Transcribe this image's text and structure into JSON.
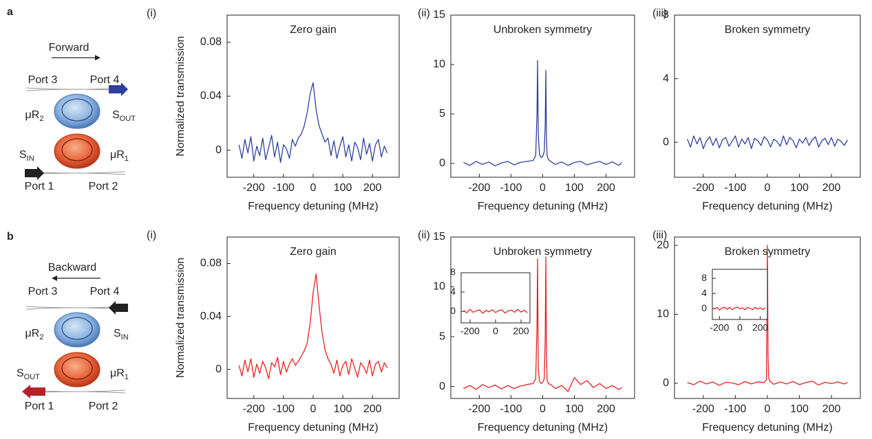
{
  "panel_labels": [
    "a",
    "b"
  ],
  "schematics": [
    {
      "direction": "Forward",
      "port3": "Port 3",
      "port4": "Port 4",
      "port1": "Port 1",
      "port2": "Port 2",
      "mr2": {
        "base": "μR",
        "sub": "2"
      },
      "mr1": {
        "base": "μR",
        "sub": "1"
      },
      "s_out": {
        "base": "S",
        "sub": "OUT"
      },
      "s_in": {
        "base": "S",
        "sub": "IN"
      }
    },
    {
      "direction": "Backward",
      "port3": "Port 3",
      "port4": "Port 4",
      "port1": "Port 1",
      "port2": "Port 2",
      "mr2": {
        "base": "μR",
        "sub": "2"
      },
      "mr1": {
        "base": "μR",
        "sub": "1"
      },
      "s_out": {
        "base": "S",
        "sub": "OUT"
      },
      "s_in": {
        "base": "S",
        "sub": "IN"
      }
    }
  ],
  "chart_data": [
    {
      "type": "line",
      "label": "(i)",
      "title": "Zero gain",
      "xlabel": "Frequency detuning (MHz)",
      "ylabel": "Normalized transmission",
      "color": "#2f3f9f",
      "xlim": [
        -290,
        290
      ],
      "xticks": [
        -200,
        -100,
        0,
        100,
        200
      ],
      "ylim": [
        -0.02,
        0.1
      ],
      "yticks": [
        0,
        0.04,
        0.08
      ],
      "x": [
        -250,
        -240,
        -230,
        -220,
        -210,
        -200,
        -190,
        -180,
        -170,
        -160,
        -150,
        -140,
        -130,
        -120,
        -110,
        -100,
        -90,
        -80,
        -70,
        -60,
        -50,
        -40,
        -30,
        -20,
        -10,
        0,
        10,
        20,
        30,
        40,
        50,
        60,
        70,
        80,
        90,
        100,
        110,
        120,
        130,
        140,
        150,
        160,
        170,
        180,
        190,
        200,
        210,
        220,
        230,
        240,
        250
      ],
      "values": [
        0.004,
        -0.006,
        0.008,
        -0.002,
        0.01,
        -0.008,
        0.003,
        -0.004,
        0.009,
        -0.007,
        0.002,
        0.011,
        -0.005,
        0.006,
        -0.009,
        0.004,
        0.001,
        -0.006,
        0.008,
        0.003,
        0.009,
        0.012,
        0.018,
        0.028,
        0.042,
        0.05,
        0.03,
        0.018,
        0.012,
        0.006,
        0.009,
        -0.004,
        0.007,
        -0.006,
        0.003,
        0.01,
        -0.005,
        0.004,
        -0.008,
        0.006,
        0.002,
        -0.007,
        0.009,
        -0.003,
        0.005,
        -0.008,
        0.004,
        0.008,
        -0.005,
        0.003,
        -0.002
      ]
    },
    {
      "type": "line",
      "label": "(ii)",
      "title": "Unbroken symmetry",
      "xlabel": "Frequency detuning (MHz)",
      "color": "#2f3f9f",
      "xlim": [
        -290,
        290
      ],
      "xticks": [
        -200,
        -100,
        0,
        100,
        200
      ],
      "ylim": [
        -1.4,
        15
      ],
      "yticks": [
        0,
        5,
        10,
        15
      ],
      "x": [
        -250,
        -230,
        -210,
        -190,
        -170,
        -150,
        -130,
        -110,
        -90,
        -70,
        -50,
        -30,
        -22,
        -18,
        -16,
        -14,
        -10,
        -5,
        0,
        5,
        8,
        10,
        12,
        14,
        18,
        25,
        40,
        60,
        80,
        100,
        120,
        140,
        160,
        180,
        200,
        220,
        240,
        250
      ],
      "values": [
        0.1,
        -0.2,
        0.2,
        -0.1,
        0.15,
        -0.25,
        0.05,
        0.2,
        -0.15,
        0.1,
        0.2,
        0.3,
        0.8,
        5,
        10.4,
        3,
        0.9,
        0.6,
        0.7,
        1.2,
        4,
        9.4,
        2.5,
        0.8,
        0.4,
        0.2,
        -0.1,
        0.15,
        -0.2,
        0.1,
        0.2,
        -0.15,
        0.05,
        0.2,
        -0.1,
        0.15,
        -0.2,
        0.1
      ]
    },
    {
      "type": "line",
      "label": "(iii)",
      "title": "Broken symmetry",
      "xlabel": "Frequency detuning (MHz)",
      "color": "#2f3f9f",
      "xlim": [
        -290,
        290
      ],
      "xticks": [
        -200,
        -100,
        0,
        100,
        200
      ],
      "ylim": [
        -2.2,
        8
      ],
      "yticks": [
        0,
        4,
        8
      ],
      "x": [
        -250,
        -240,
        -230,
        -220,
        -210,
        -200,
        -190,
        -180,
        -170,
        -160,
        -150,
        -140,
        -130,
        -120,
        -110,
        -100,
        -90,
        -80,
        -70,
        -60,
        -50,
        -40,
        -30,
        -20,
        -10,
        0,
        10,
        20,
        30,
        40,
        50,
        60,
        70,
        80,
        90,
        100,
        110,
        120,
        130,
        140,
        150,
        160,
        170,
        180,
        190,
        200,
        210,
        220,
        230,
        240,
        250
      ],
      "values": [
        0.2,
        -0.3,
        0.4,
        -0.1,
        0.3,
        -0.4,
        0.1,
        0.35,
        -0.2,
        0.25,
        -0.35,
        0.15,
        0.3,
        -0.25,
        0.05,
        0.4,
        -0.3,
        0.2,
        -0.1,
        0.3,
        -0.4,
        0.25,
        0.1,
        -0.2,
        0.35,
        0.15,
        -0.3,
        0.2,
        0.05,
        -0.25,
        0.4,
        -0.15,
        0.3,
        0.1,
        -0.35,
        0.2,
        -0.05,
        0.3,
        -0.2,
        0.15,
        0.35,
        -0.3,
        0.1,
        0.25,
        -0.15,
        0.3,
        -0.25,
        0.2,
        0.05,
        -0.2,
        0.15
      ]
    },
    {
      "type": "line",
      "label": "(i)",
      "title": "Zero gain",
      "xlabel": "Frequency detuning (MHz)",
      "ylabel": "Normalized transmission",
      "color": "#e8201f",
      "xlim": [
        -290,
        290
      ],
      "xticks": [
        -200,
        -100,
        0,
        100,
        200
      ],
      "ylim": [
        -0.022,
        0.1
      ],
      "yticks": [
        0,
        0.04,
        0.08
      ],
      "x": [
        -250,
        -240,
        -230,
        -220,
        -210,
        -200,
        -190,
        -180,
        -170,
        -160,
        -150,
        -140,
        -130,
        -120,
        -110,
        -100,
        -90,
        -80,
        -70,
        -60,
        -50,
        -40,
        -30,
        -20,
        -10,
        0,
        10,
        20,
        30,
        40,
        50,
        60,
        70,
        80,
        90,
        100,
        110,
        120,
        130,
        140,
        150,
        160,
        170,
        180,
        190,
        200,
        210,
        220,
        230,
        240,
        250
      ],
      "values": [
        0.003,
        -0.005,
        0.007,
        -0.002,
        0.008,
        -0.006,
        0.004,
        -0.003,
        0.006,
        0.001,
        -0.007,
        0.005,
        0.002,
        0.009,
        -0.004,
        0.006,
        -0.002,
        0.004,
        0.008,
        0.003,
        0.006,
        0.01,
        0.014,
        0.02,
        0.035,
        0.058,
        0.072,
        0.048,
        0.028,
        0.015,
        0.008,
        0.004,
        -0.003,
        0.007,
        -0.005,
        0.003,
        0.006,
        -0.004,
        0.008,
        0.001,
        -0.006,
        0.005,
        0.002,
        -0.003,
        0.007,
        -0.005,
        0.004,
        0.006,
        -0.002,
        0.005,
        0.001
      ]
    },
    {
      "type": "line",
      "label": "(ii)",
      "title": "Unbroken symmetry",
      "xlabel": "Frequency detuning (MHz)",
      "color": "#e8201f",
      "xlim": [
        -290,
        290
      ],
      "xticks": [
        -200,
        -100,
        0,
        100,
        200
      ],
      "ylim": [
        -1.2,
        15
      ],
      "yticks": [
        0,
        5,
        10,
        15
      ],
      "x": [
        -250,
        -230,
        -210,
        -190,
        -170,
        -150,
        -130,
        -110,
        -90,
        -70,
        -50,
        -30,
        -22,
        -18,
        -16,
        -14,
        -10,
        -5,
        0,
        5,
        8,
        10,
        12,
        14,
        18,
        25,
        40,
        60,
        80,
        100,
        120,
        140,
        160,
        180,
        200,
        220,
        240,
        250
      ],
      "values": [
        -0.2,
        0.1,
        -0.3,
        0.2,
        -0.1,
        0.15,
        -0.25,
        0.1,
        -0.2,
        0.05,
        0.2,
        0.3,
        0.8,
        6,
        12.8,
        2,
        0.5,
        0.3,
        0.4,
        0.8,
        5,
        13,
        3,
        0.6,
        0.3,
        0.2,
        -0.2,
        0.1,
        -0.5,
        0.9,
        0.2,
        0.6,
        -0.1,
        0.3,
        -0.2,
        0.1,
        -0.3,
        -0.1
      ],
      "inset": {
        "type": "line",
        "color": "#e8201f",
        "xlim": [
          -270,
          270
        ],
        "xticks": [
          -200,
          0,
          200
        ],
        "ylim": [
          -2.4,
          8
        ],
        "yticks": [
          0,
          4,
          8
        ],
        "x": [
          -250,
          -225,
          -200,
          -175,
          -150,
          -125,
          -100,
          -75,
          -50,
          -25,
          0,
          25,
          50,
          75,
          100,
          125,
          150,
          175,
          200,
          225,
          250
        ],
        "values": [
          0.2,
          -0.3,
          0.4,
          -0.2,
          0.1,
          0.3,
          -0.4,
          0.2,
          -0.1,
          0.35,
          -0.25,
          0.15,
          0.3,
          -0.35,
          0.1,
          0.25,
          -0.2,
          0.4,
          -0.15,
          0.2,
          -0.3
        ]
      }
    },
    {
      "type": "line",
      "label": "(iii)",
      "title": "Broken symmetry",
      "xlabel": "Frequency detuning (MHz)",
      "color": "#e8201f",
      "xlim": [
        -290,
        290
      ],
      "xticks": [
        -200,
        -100,
        0,
        100,
        200
      ],
      "ylim": [
        -2.2,
        21.2
      ],
      "yticks": [
        0,
        10,
        20
      ],
      "x": [
        -250,
        -230,
        -210,
        -190,
        -170,
        -150,
        -130,
        -110,
        -90,
        -70,
        -50,
        -30,
        -10,
        -3,
        0,
        2,
        4,
        8,
        20,
        40,
        60,
        80,
        100,
        120,
        140,
        160,
        180,
        200,
        220,
        240,
        250
      ],
      "values": [
        0.1,
        -0.2,
        0.3,
        -0.1,
        0.2,
        -0.3,
        0.15,
        0.05,
        -0.2,
        0.25,
        -0.1,
        0.2,
        0.1,
        0.5,
        20,
        4,
        0.8,
        0.3,
        -0.15,
        0.2,
        -0.1,
        0.25,
        -0.2,
        0.1,
        0.3,
        -0.25,
        0.15,
        -0.05,
        0.2,
        -0.1,
        0.1
      ],
      "inset": {
        "type": "line",
        "color": "#e8201f",
        "xlim": [
          -270,
          270
        ],
        "xticks": [
          -200,
          0,
          200
        ],
        "ylim": [
          -2.9,
          10.4
        ],
        "yticks": [
          0,
          4,
          8
        ],
        "x": [
          -250,
          -225,
          -200,
          -175,
          -150,
          -125,
          -100,
          -75,
          -50,
          -25,
          0,
          25,
          50,
          75,
          100,
          125,
          150,
          175,
          200,
          225,
          250
        ],
        "values": [
          -0.2,
          0.3,
          -0.4,
          0.1,
          0.35,
          -0.2,
          0.25,
          -0.3,
          0.15,
          0.4,
          -0.1,
          0.2,
          -0.35,
          0.3,
          0.05,
          -0.25,
          0.3,
          -0.15,
          0.2,
          -0.3,
          0.25
        ]
      }
    }
  ]
}
